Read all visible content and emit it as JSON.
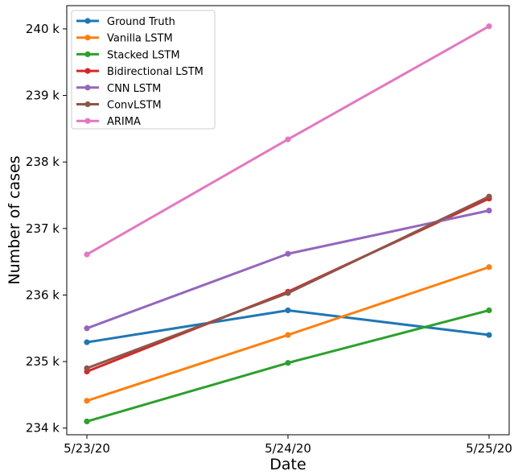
{
  "chart_data": {
    "type": "line",
    "xlabel": "Date",
    "ylabel": "Number of cases",
    "x": [
      "5/23/20",
      "5/24/20",
      "5/25/20"
    ],
    "ylim": [
      233900,
      240350
    ],
    "yticks": [
      234000,
      235000,
      236000,
      237000,
      238000,
      239000,
      240000
    ],
    "ytick_labels": [
      "234 k",
      "235 k",
      "236 k",
      "237 k",
      "238 k",
      "239 k",
      "240 k"
    ],
    "grid": false,
    "legend_position": "top-left",
    "series": [
      {
        "name": "Ground Truth",
        "color": "#1f77b4",
        "values": [
          235290,
          235770,
          235400
        ]
      },
      {
        "name": "Vanilla LSTM",
        "color": "#ff7f0e",
        "values": [
          234410,
          235400,
          236420
        ]
      },
      {
        "name": "Stacked LSTM",
        "color": "#2ca02c",
        "values": [
          234100,
          234980,
          235770
        ]
      },
      {
        "name": "Bidirectional LSTM",
        "color": "#d62728",
        "values": [
          234850,
          236050,
          237450
        ]
      },
      {
        "name": "CNN LSTM",
        "color": "#9467bd",
        "values": [
          235500,
          236620,
          237270
        ]
      },
      {
        "name": "ConvLSTM",
        "color": "#8c564b",
        "values": [
          234900,
          236030,
          237480
        ]
      },
      {
        "name": "ARIMA",
        "color": "#e377c2",
        "values": [
          236610,
          238340,
          240040
        ]
      }
    ]
  }
}
